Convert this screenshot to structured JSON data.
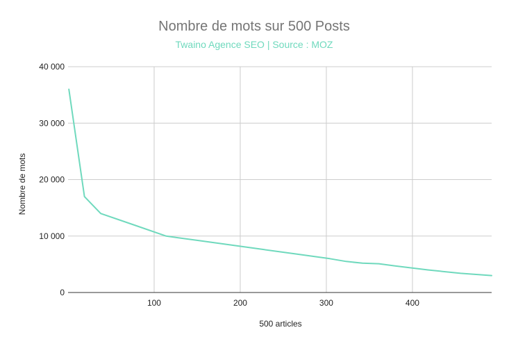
{
  "chart_data": {
    "type": "line",
    "title": "Nombre de mots sur 500 Posts",
    "subtitle": "Twaino Agence SEO | Source : MOZ",
    "xlabel": "500 articles",
    "ylabel": "Nombre de mots",
    "xlim": [
      0,
      492
    ],
    "ylim": [
      0,
      40000
    ],
    "x_ticks": [
      100,
      200,
      300,
      400
    ],
    "x_tick_labels": [
      "100",
      "200",
      "300",
      "400"
    ],
    "y_ticks": [
      0,
      10000,
      20000,
      30000,
      40000
    ],
    "y_tick_labels": [
      "0",
      "10 000",
      "20 000",
      "30 000",
      "40 000"
    ],
    "grid": true,
    "legend": "none",
    "series": [
      {
        "color": "#6fd9bd",
        "x": [
          1,
          19,
          38,
          76,
          114,
          152,
          190,
          228,
          266,
          304,
          323,
          342,
          361,
          380,
          418,
          456,
          492
        ],
        "y": [
          36000,
          17000,
          14000,
          12000,
          10000,
          9200,
          8400,
          7600,
          6800,
          6000,
          5500,
          5200,
          5100,
          4700,
          4000,
          3400,
          3000
        ]
      }
    ]
  }
}
